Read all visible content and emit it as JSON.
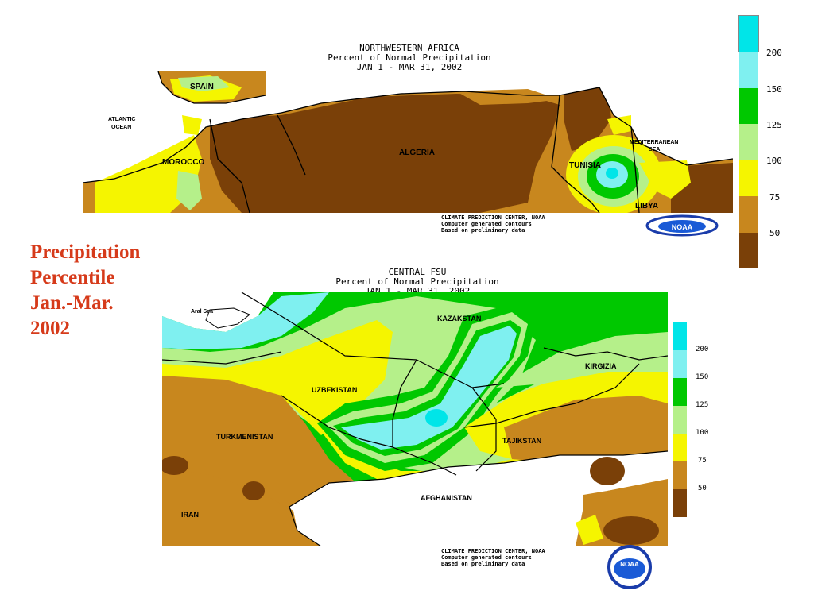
{
  "side_title": [
    "Precipitation",
    "Percentile",
    "Jan.-Mar.",
    "2002"
  ],
  "legend_colors": {
    "above_200": "#00e5e8",
    "c150_200": "#7ff0f0",
    "c125_150": "#00c800",
    "c100_125": "#b5f08a",
    "c75_100": "#f5f500",
    "c50_75": "#c8871e",
    "below_50": "#7a4008"
  },
  "map1": {
    "title": [
      "NORTHWESTERN AFRICA",
      "Percent of Normal Precipitation",
      "JAN  1 -  MAR 31, 2002"
    ],
    "labels": {
      "spain": "SPAIN",
      "atlantic": "ATLANTIC",
      "ocean": "OCEAN",
      "morocco": "MOROCCO",
      "algeria": "ALGERIA",
      "tunisia": "TUNISIA",
      "libya": "LIBYA",
      "mediterranean": "MEDITERRANEAN",
      "sea": "SEA"
    },
    "legend_ticks": [
      "200",
      "150",
      "125",
      "100",
      "75",
      "50"
    ],
    "credit": [
      "CLIMATE PREDICTION CENTER, NOAA",
      "Computer generated contours",
      "Based on preliminary data"
    ],
    "logo_text": "NOAA"
  },
  "map2": {
    "title": [
      "CENTRAL FSU",
      "Percent of Normal Precipitation",
      "JAN  1 -  MAR 31, 2002"
    ],
    "labels": {
      "aral_sea": "Aral Sea",
      "kazakstan": "KAZAKSTAN",
      "kirgizia": "KIRGIZIA",
      "uzbekistan": "UZBEKISTAN",
      "turkmenistan": "TURKMENISTAN",
      "tajikstan": "TAJIKSTAN",
      "afghanistan": "AFGHANISTAN",
      "iran": "IRAN"
    },
    "legend_ticks": [
      "200",
      "150",
      "125",
      "100",
      "75",
      "50"
    ],
    "credit": [
      "CLIMATE PREDICTION CENTER, NOAA",
      "Computer generated contours",
      "Based on preliminary data"
    ],
    "logo_text": "NOAA"
  }
}
